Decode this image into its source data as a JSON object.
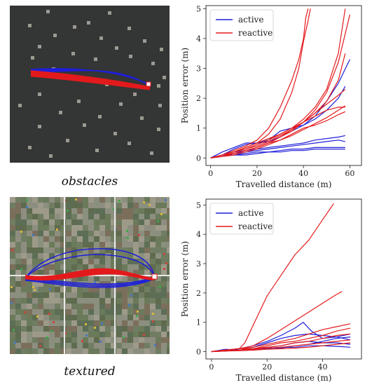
{
  "captions": {
    "obstacles": "obstacles",
    "textured": "textured"
  },
  "colors": {
    "active": "#1f1fd9",
    "reactive": "#e31a1c",
    "sim_bg": "#343535",
    "obstacle": "#9a9a92"
  },
  "chart_data": [
    {
      "type": "line",
      "title": "",
      "xlabel": "Travelled distance (m)",
      "ylabel": "Position error (m)",
      "xlim": [
        -2,
        65
      ],
      "ylim": [
        -0.25,
        5.1
      ],
      "xticks": [
        0,
        20,
        40,
        60
      ],
      "yticks": [
        0,
        1,
        2,
        3,
        4,
        5
      ],
      "grid": false,
      "legend": {
        "position": "top-left",
        "entries": [
          "active",
          "reactive"
        ]
      },
      "series": [
        {
          "name": "active",
          "x": [
            0,
            5,
            10,
            15,
            20,
            25,
            30,
            35,
            40,
            45,
            50,
            55,
            58
          ],
          "y": [
            0,
            0.1,
            0.3,
            0.45,
            0.5,
            0.6,
            0.9,
            1.0,
            1.1,
            1.3,
            1.6,
            2.0,
            2.4
          ]
        },
        {
          "name": "active",
          "x": [
            0,
            5,
            10,
            15,
            20,
            25,
            30,
            35,
            40,
            45,
            50,
            55,
            60
          ],
          "y": [
            0,
            0.2,
            0.35,
            0.5,
            0.5,
            0.55,
            0.7,
            0.9,
            1.1,
            1.4,
            1.9,
            2.5,
            3.3
          ]
        },
        {
          "name": "active",
          "x": [
            0,
            5,
            10,
            15,
            20,
            25,
            30,
            35,
            40,
            45,
            50,
            55,
            58
          ],
          "y": [
            0,
            0.1,
            0.2,
            0.25,
            0.3,
            0.35,
            0.4,
            0.45,
            0.5,
            0.6,
            0.65,
            0.7,
            0.75
          ]
        },
        {
          "name": "active",
          "x": [
            0,
            5,
            10,
            15,
            20,
            25,
            30,
            35,
            40,
            45,
            50,
            55,
            58
          ],
          "y": [
            0,
            0.05,
            0.15,
            0.2,
            0.25,
            0.3,
            0.35,
            0.4,
            0.45,
            0.5,
            0.55,
            0.6,
            0.55
          ]
        },
        {
          "name": "active",
          "x": [
            0,
            5,
            10,
            15,
            20,
            25,
            30,
            35,
            40,
            45,
            50,
            55,
            58
          ],
          "y": [
            0,
            0.1,
            0.1,
            0.15,
            0.2,
            0.2,
            0.25,
            0.3,
            0.3,
            0.35,
            0.35,
            0.35,
            0.35
          ]
        },
        {
          "name": "active",
          "x": [
            0,
            5,
            10,
            15,
            20,
            25,
            30,
            35,
            40,
            45,
            50,
            55,
            58
          ],
          "y": [
            0,
            0.05,
            0.1,
            0.1,
            0.15,
            0.2,
            0.2,
            0.25,
            0.25,
            0.3,
            0.3,
            0.3,
            0.3
          ]
        },
        {
          "name": "reactive",
          "x": [
            0,
            5,
            10,
            15,
            20,
            25,
            30,
            35,
            38,
            40,
            41,
            42
          ],
          "y": [
            0,
            0.1,
            0.25,
            0.4,
            0.6,
            1.0,
            1.7,
            2.6,
            3.3,
            4.0,
            4.7,
            5.0
          ]
        },
        {
          "name": "reactive",
          "x": [
            0,
            5,
            10,
            15,
            20,
            25,
            30,
            35,
            38,
            40,
            42,
            43
          ],
          "y": [
            0,
            0.1,
            0.2,
            0.35,
            0.5,
            0.8,
            1.3,
            2.2,
            3.0,
            3.9,
            4.6,
            5.0
          ]
        },
        {
          "name": "reactive",
          "x": [
            0,
            5,
            10,
            15,
            20,
            25,
            30,
            35,
            40,
            45,
            50,
            55,
            58
          ],
          "y": [
            0,
            0.1,
            0.2,
            0.3,
            0.45,
            0.6,
            0.8,
            1.0,
            1.3,
            1.7,
            2.3,
            3.5,
            5.0
          ]
        },
        {
          "name": "reactive",
          "x": [
            0,
            5,
            10,
            15,
            20,
            25,
            30,
            35,
            40,
            45,
            50,
            55,
            60
          ],
          "y": [
            0,
            0.1,
            0.15,
            0.25,
            0.35,
            0.5,
            0.7,
            0.9,
            1.2,
            1.6,
            2.2,
            3.2,
            4.8
          ]
        },
        {
          "name": "reactive",
          "x": [
            0,
            5,
            10,
            15,
            20,
            25,
            30,
            35,
            40,
            45,
            50,
            55,
            58
          ],
          "y": [
            0,
            0.1,
            0.15,
            0.25,
            0.35,
            0.5,
            0.7,
            0.95,
            1.2,
            1.5,
            1.9,
            2.6,
            3.5
          ]
        },
        {
          "name": "reactive",
          "x": [
            0,
            5,
            10,
            15,
            20,
            25,
            30,
            35,
            40,
            45,
            50,
            55,
            58
          ],
          "y": [
            0,
            0.1,
            0.2,
            0.3,
            0.4,
            0.55,
            0.75,
            0.95,
            1.2,
            1.5,
            1.8,
            2.1,
            2.3
          ]
        },
        {
          "name": "reactive",
          "x": [
            0,
            5,
            10,
            15,
            20,
            25,
            30,
            35,
            40,
            45,
            50,
            55,
            58
          ],
          "y": [
            0,
            0.05,
            0.1,
            0.2,
            0.3,
            0.45,
            0.6,
            0.75,
            0.95,
            1.15,
            1.35,
            1.6,
            1.75
          ]
        },
        {
          "name": "reactive",
          "x": [
            0,
            5,
            10,
            15,
            20,
            25,
            30,
            35,
            40,
            45,
            50,
            55,
            58
          ],
          "y": [
            0,
            0.1,
            0.2,
            0.35,
            0.5,
            0.65,
            0.8,
            1.0,
            1.2,
            1.4,
            1.6,
            1.7,
            1.7
          ]
        },
        {
          "name": "reactive",
          "x": [
            0,
            5,
            10,
            15,
            20,
            25,
            30,
            35,
            40,
            45,
            50,
            55,
            58
          ],
          "y": [
            0,
            0.05,
            0.15,
            0.25,
            0.35,
            0.5,
            0.6,
            0.8,
            1.0,
            1.1,
            1.25,
            1.45,
            1.55
          ]
        }
      ]
    },
    {
      "type": "line",
      "title": "",
      "xlabel": "Travelled distance (m)",
      "ylabel": "Position error (m)",
      "xlim": [
        -2,
        54
      ],
      "ylim": [
        -0.25,
        5.2
      ],
      "xticks": [
        0,
        20,
        40
      ],
      "yticks": [
        0,
        1,
        2,
        3,
        4,
        5
      ],
      "grid": false,
      "legend": {
        "position": "top-left",
        "entries": [
          "active",
          "reactive"
        ]
      },
      "series": [
        {
          "name": "active",
          "x": [
            0,
            5,
            10,
            15,
            20,
            25,
            30,
            33,
            36,
            40,
            45,
            50
          ],
          "y": [
            0,
            0.05,
            0.1,
            0.2,
            0.35,
            0.55,
            0.8,
            1.0,
            0.7,
            0.45,
            0.5,
            0.6
          ]
        },
        {
          "name": "active",
          "x": [
            0,
            5,
            10,
            15,
            20,
            25,
            30,
            35,
            40,
            45,
            50
          ],
          "y": [
            0,
            0.05,
            0.1,
            0.15,
            0.3,
            0.45,
            0.55,
            0.6,
            0.55,
            0.5,
            0.4
          ]
        },
        {
          "name": "active",
          "x": [
            0,
            5,
            10,
            15,
            20,
            25,
            30,
            35,
            40,
            45,
            50
          ],
          "y": [
            0,
            0.05,
            0.05,
            0.1,
            0.15,
            0.2,
            0.3,
            0.35,
            0.3,
            0.3,
            0.25
          ]
        },
        {
          "name": "active",
          "x": [
            0,
            5,
            10,
            15,
            20,
            25,
            30,
            35,
            40,
            45,
            50
          ],
          "y": [
            0,
            0.02,
            0.05,
            0.05,
            0.1,
            0.15,
            0.15,
            0.2,
            0.2,
            0.18,
            0.15
          ]
        },
        {
          "name": "active",
          "x": [
            0,
            5,
            10,
            15,
            20,
            25,
            30,
            35,
            40,
            45,
            50
          ],
          "y": [
            0,
            0.08,
            0.05,
            0.1,
            0.12,
            0.12,
            0.2,
            0.25,
            0.35,
            0.45,
            0.5
          ]
        },
        {
          "name": "reactive",
          "x": [
            0,
            5,
            10,
            12,
            15,
            20,
            25,
            30,
            35,
            40,
            44
          ],
          "y": [
            0,
            0.05,
            0.1,
            0.3,
            0.9,
            1.9,
            2.6,
            3.3,
            3.8,
            4.5,
            5.05
          ]
        },
        {
          "name": "reactive",
          "x": [
            0,
            5,
            10,
            15,
            20,
            25,
            30,
            35,
            40,
            45,
            47
          ],
          "y": [
            0,
            0.05,
            0.1,
            0.2,
            0.45,
            0.75,
            1.05,
            1.35,
            1.65,
            1.95,
            2.05
          ]
        },
        {
          "name": "reactive",
          "x": [
            0,
            5,
            10,
            15,
            20,
            25,
            30,
            35,
            40,
            45,
            50
          ],
          "y": [
            0,
            0.05,
            0.1,
            0.15,
            0.25,
            0.35,
            0.45,
            0.6,
            0.75,
            0.85,
            0.95
          ]
        },
        {
          "name": "reactive",
          "x": [
            0,
            5,
            10,
            15,
            20,
            25,
            30,
            35,
            40,
            45,
            50
          ],
          "y": [
            0,
            0.05,
            0.1,
            0.1,
            0.2,
            0.3,
            0.35,
            0.45,
            0.55,
            0.7,
            0.8
          ]
        },
        {
          "name": "reactive",
          "x": [
            0,
            5,
            10,
            15,
            20,
            25,
            30,
            35,
            40,
            45,
            50
          ],
          "y": [
            0,
            0.02,
            0.05,
            0.1,
            0.15,
            0.2,
            0.3,
            0.35,
            0.45,
            0.55,
            0.6
          ]
        },
        {
          "name": "reactive",
          "x": [
            0,
            5,
            10,
            15,
            20,
            25,
            30,
            35,
            40,
            45,
            50
          ],
          "y": [
            0,
            0.02,
            0.05,
            0.08,
            0.12,
            0.15,
            0.2,
            0.25,
            0.3,
            0.35,
            0.4
          ]
        },
        {
          "name": "reactive",
          "x": [
            0,
            5,
            10,
            15,
            20,
            25,
            30,
            35,
            40,
            45,
            50
          ],
          "y": [
            0,
            0.02,
            0.03,
            0.05,
            0.08,
            0.1,
            0.12,
            0.15,
            0.2,
            0.25,
            0.3
          ]
        }
      ]
    }
  ]
}
